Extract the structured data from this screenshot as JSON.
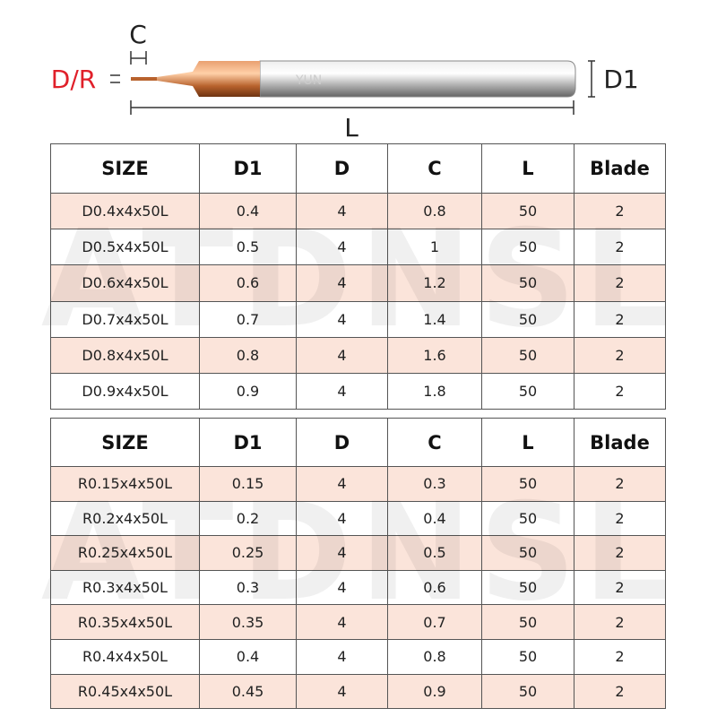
{
  "diagram": {
    "labels": {
      "c": "C",
      "dr": "D/R",
      "d1": "D1",
      "l": "L"
    },
    "brand": "YUN"
  },
  "watermark": "ATDNSL",
  "tables": [
    {
      "header": [
        "SIZE",
        "D1",
        "D",
        "C",
        "L",
        "Blade"
      ],
      "rows": [
        [
          "D0.4x4x50L",
          "0.4",
          "4",
          "0.8",
          "50",
          "2"
        ],
        [
          "D0.5x4x50L",
          "0.5",
          "4",
          "1",
          "50",
          "2"
        ],
        [
          "D0.6x4x50L",
          "0.6",
          "4",
          "1.2",
          "50",
          "2"
        ],
        [
          "D0.7x4x50L",
          "0.7",
          "4",
          "1.4",
          "50",
          "2"
        ],
        [
          "D0.8x4x50L",
          "0.8",
          "4",
          "1.6",
          "50",
          "2"
        ],
        [
          "D0.9x4x50L",
          "0.9",
          "4",
          "1.8",
          "50",
          "2"
        ]
      ]
    },
    {
      "header": [
        "SIZE",
        "D1",
        "D",
        "C",
        "L",
        "Blade"
      ],
      "rows": [
        [
          "R0.15x4x50L",
          "0.15",
          "4",
          "0.3",
          "50",
          "2"
        ],
        [
          "R0.2x4x50L",
          "0.2",
          "4",
          "0.4",
          "50",
          "2"
        ],
        [
          "R0.25x4x50L",
          "0.25",
          "4",
          "0.5",
          "50",
          "2"
        ],
        [
          "R0.3x4x50L",
          "0.3",
          "4",
          "0.6",
          "50",
          "2"
        ],
        [
          "R0.35x4x50L",
          "0.35",
          "4",
          "0.7",
          "50",
          "2"
        ],
        [
          "R0.4x4x50L",
          "0.4",
          "4",
          "0.8",
          "50",
          "2"
        ],
        [
          "R0.45x4x50L",
          "0.45",
          "4",
          "0.9",
          "50",
          "2"
        ]
      ]
    }
  ]
}
